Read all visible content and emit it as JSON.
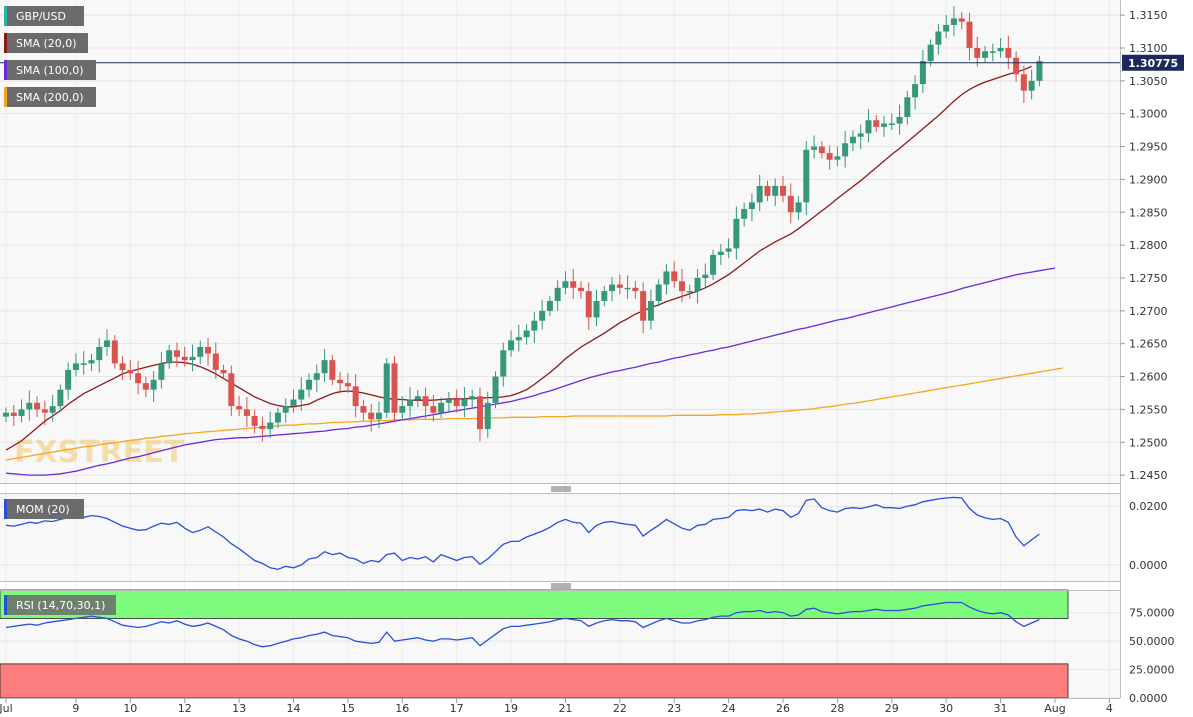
{
  "chart_data": {
    "type": "candlestick",
    "symbol": "GBP/USD",
    "indicators": {
      "sma20": {
        "label": "SMA (20,0)",
        "color": "#8b1a1a"
      },
      "sma100": {
        "label": "SMA (100,0)",
        "color": "#6a2ad8"
      },
      "sma200": {
        "label": "SMA (200,0)",
        "color": "#f5a623"
      },
      "mom": {
        "label": "MOM (20)",
        "color": "#2a4fd8"
      },
      "rsi": {
        "label": "RSI (14,70,30,1)",
        "color": "#2a4fd8"
      }
    },
    "last_price": "1.30775",
    "price_axis": {
      "ylim": [
        1.2438,
        1.3173
      ],
      "ticks": [
        "1.3150",
        "1.3100",
        "1.3050",
        "1.3000",
        "1.2950",
        "1.2900",
        "1.2850",
        "1.2800",
        "1.2750",
        "1.2700",
        "1.2650",
        "1.2600",
        "1.2550",
        "1.2500",
        "1.2450"
      ]
    },
    "mom_axis": {
      "ylim": [
        -0.0055,
        0.0245
      ],
      "ticks": [
        "0.0200",
        "0.0000"
      ]
    },
    "rsi_axis": {
      "ylim": [
        0,
        95
      ],
      "ticks": [
        "75.0000",
        "50.0000",
        "25.0000",
        "0.0000"
      ],
      "overbought": 70,
      "oversold": 30
    },
    "x_labels": [
      {
        "label": "Jul",
        "i": 0
      },
      {
        "label": "9",
        "i": 9
      },
      {
        "label": "10",
        "i": 16
      },
      {
        "label": "12",
        "i": 23
      },
      {
        "label": "13",
        "i": 30
      },
      {
        "label": "14",
        "i": 37
      },
      {
        "label": "15",
        "i": 44
      },
      {
        "label": "16",
        "i": 51
      },
      {
        "label": "17",
        "i": 58
      },
      {
        "label": "19",
        "i": 65
      },
      {
        "label": "21",
        "i": 72
      },
      {
        "label": "22",
        "i": 79
      },
      {
        "label": "23",
        "i": 86
      },
      {
        "label": "24",
        "i": 93
      },
      {
        "label": "26",
        "i": 100
      },
      {
        "label": "28",
        "i": 107
      },
      {
        "label": "29",
        "i": 114
      },
      {
        "label": "30",
        "i": 121
      },
      {
        "label": "31",
        "i": 128
      },
      {
        "label": "Aug",
        "i": 135
      },
      {
        "label": "4",
        "i": 142
      }
    ],
    "closes": [
      1.2545,
      1.254,
      1.255,
      1.256,
      1.255,
      1.2545,
      1.2555,
      1.258,
      1.261,
      1.262,
      1.262,
      1.2625,
      1.2645,
      1.2655,
      1.262,
      1.261,
      1.2605,
      1.259,
      1.258,
      1.2595,
      1.262,
      1.264,
      1.263,
      1.2625,
      1.263,
      1.2645,
      1.2635,
      1.261,
      1.2605,
      1.2555,
      1.255,
      1.254,
      1.2525,
      1.252,
      1.253,
      1.2545,
      1.2555,
      1.2565,
      1.258,
      1.2595,
      1.2605,
      1.2625,
      1.2595,
      1.259,
      1.2585,
      1.2555,
      1.2545,
      1.2535,
      1.2545,
      1.262,
      1.2545,
      1.2555,
      1.2565,
      1.257,
      1.2555,
      1.2545,
      1.256,
      1.2565,
      1.2555,
      1.2565,
      1.257,
      1.252,
      1.256,
      1.26,
      1.264,
      1.2655,
      1.266,
      1.267,
      1.2685,
      1.27,
      1.2715,
      1.2735,
      1.2745,
      1.2735,
      1.273,
      1.269,
      1.2715,
      1.273,
      1.274,
      1.2735,
      1.2735,
      1.273,
      1.2685,
      1.2715,
      1.274,
      1.276,
      1.2745,
      1.273,
      1.273,
      1.275,
      1.2755,
      1.2785,
      1.279,
      1.2795,
      1.284,
      1.2855,
      1.2865,
      1.289,
      1.2875,
      1.289,
      1.2875,
      1.285,
      1.2865,
      1.2945,
      1.295,
      1.294,
      1.293,
      1.2935,
      1.2955,
      1.2965,
      1.297,
      1.299,
      1.298,
      1.2985,
      1.2985,
      1.2995,
      1.3025,
      1.3045,
      1.308,
      1.3105,
      1.3125,
      1.3135,
      1.3145,
      1.314,
      1.31,
      1.3085,
      1.3095,
      1.3095,
      1.31,
      1.3085,
      1.306,
      1.3035,
      1.305,
      1.308
    ],
    "sma20": [
      1.2488,
      1.2495,
      1.2502,
      1.2512,
      1.2522,
      1.2532,
      1.254,
      1.2548,
      1.2558,
      1.2566,
      1.2574,
      1.258,
      1.2586,
      1.2592,
      1.2598,
      1.2604,
      1.2608,
      1.2611,
      1.2614,
      1.2617,
      1.262,
      1.2622,
      1.2622,
      1.2621,
      1.2619,
      1.2615,
      1.261,
      1.2604,
      1.2597,
      1.259,
      1.2583,
      1.2576,
      1.2569,
      1.2564,
      1.2559,
      1.2556,
      1.2554,
      1.2554,
      1.2556,
      1.2558,
      1.2564,
      1.2569,
      1.2574,
      1.2577,
      1.2578,
      1.2577,
      1.2575,
      1.2572,
      1.2569,
      1.2567,
      1.2565,
      1.2565,
      1.2564,
      1.2564,
      1.2564,
      1.2564,
      1.2565,
      1.2566,
      1.2566,
      1.2566,
      1.2567,
      1.2567,
      1.2568,
      1.2568,
      1.2569,
      1.2571,
      1.2575,
      1.258,
      1.2588,
      1.2597,
      1.2606,
      1.2616,
      1.2627,
      1.2636,
      1.2645,
      1.2652,
      1.2659,
      1.2666,
      1.2674,
      1.2682,
      1.2688,
      1.2695,
      1.27,
      1.2705,
      1.2709,
      1.2714,
      1.2718,
      1.2722,
      1.2726,
      1.273,
      1.2735,
      1.2741,
      1.2748,
      1.2755,
      1.2764,
      1.2773,
      1.2782,
      1.2791,
      1.2798,
      1.2805,
      1.2811,
      1.2817,
      1.2825,
      1.2834,
      1.2843,
      1.2852,
      1.2861,
      1.2871,
      1.288,
      1.2889,
      1.2898,
      1.2908,
      1.2918,
      1.2928,
      1.2938,
      1.2947,
      1.2957,
      1.2967,
      1.2977,
      1.2987,
      1.2997,
      1.3008,
      1.3019,
      1.3029,
      1.3037,
      1.3043,
      1.3048,
      1.3052,
      1.3056,
      1.306,
      1.3063,
      1.3067,
      1.3072
    ],
    "sma100": [
      1.2453,
      1.2452,
      1.2451,
      1.245,
      1.245,
      1.245,
      1.2451,
      1.2452,
      1.2454,
      1.2456,
      1.2459,
      1.2462,
      1.2465,
      1.2467,
      1.247,
      1.2473,
      1.2476,
      1.2478,
      1.2481,
      1.2484,
      1.2487,
      1.249,
      1.2493,
      1.2496,
      1.2498,
      1.25,
      1.2502,
      1.2504,
      1.2505,
      1.2506,
      1.2507,
      1.2507,
      1.2508,
      1.2509,
      1.251,
      1.2511,
      1.2512,
      1.2513,
      1.2514,
      1.2515,
      1.2516,
      1.2517,
      1.2519,
      1.252,
      1.2521,
      1.2523,
      1.2524,
      1.2526,
      1.2528,
      1.253,
      1.2532,
      1.2534,
      1.2536,
      1.2538,
      1.254,
      1.2542,
      1.2544,
      1.2546,
      1.2548,
      1.255,
      1.2552,
      1.2554,
      1.2556,
      1.2558,
      1.256,
      1.2562,
      1.2565,
      1.2568,
      1.2571,
      1.2575,
      1.2578,
      1.2582,
      1.2586,
      1.259,
      1.2594,
      1.2598,
      1.2601,
      1.2604,
      1.2607,
      1.2609,
      1.2612,
      1.2614,
      1.2617,
      1.262,
      1.2622,
      1.2625,
      1.2628,
      1.263,
      1.2633,
      1.2635,
      1.2638,
      1.264,
      1.2643,
      1.2645,
      1.2648,
      1.2651,
      1.2654,
      1.2657,
      1.266,
      1.2663,
      1.2666,
      1.2669,
      1.2672,
      1.2674,
      1.2677,
      1.268,
      1.2683,
      1.2686,
      1.2688,
      1.2691,
      1.2694,
      1.2697,
      1.27,
      1.2703,
      1.2706,
      1.2709,
      1.2712,
      1.2715,
      1.2718,
      1.2721,
      1.2724,
      1.2727,
      1.273,
      1.2734,
      1.2737,
      1.274,
      1.2743,
      1.2746,
      1.2749,
      1.2752,
      1.2755,
      1.2757,
      1.2759,
      1.2761,
      1.2763,
      1.2765
    ],
    "sma200": [
      1.2473,
      1.2475,
      1.2477,
      1.2479,
      1.2481,
      1.2483,
      1.2485,
      1.2487,
      1.2489,
      1.2491,
      1.2493,
      1.2494,
      1.2496,
      1.2498,
      1.2499,
      1.2501,
      1.2503,
      1.2504,
      1.2506,
      1.2507,
      1.2509,
      1.251,
      1.2511,
      1.2513,
      1.2514,
      1.2515,
      1.2516,
      1.2517,
      1.2518,
      1.2519,
      1.252,
      1.2521,
      1.2522,
      1.2523,
      1.2524,
      1.2525,
      1.2526,
      1.2526,
      1.2527,
      1.2528,
      1.2528,
      1.2529,
      1.253,
      1.253,
      1.2531,
      1.2531,
      1.2532,
      1.2532,
      1.2533,
      1.2533,
      1.2534,
      1.2534,
      1.2534,
      1.2535,
      1.2535,
      1.2535,
      1.2535,
      1.2536,
      1.2536,
      1.2536,
      1.2536,
      1.2537,
      1.2537,
      1.2537,
      1.2537,
      1.2538,
      1.2538,
      1.2538,
      1.2538,
      1.2539,
      1.2539,
      1.2539,
      1.2539,
      1.254,
      1.254,
      1.254,
      1.254,
      1.254,
      1.254,
      1.254,
      1.254,
      1.254,
      1.254,
      1.254,
      1.254,
      1.254,
      1.2541,
      1.2541,
      1.2541,
      1.2541,
      1.2541,
      1.2541,
      1.2542,
      1.2542,
      1.2542,
      1.2543,
      1.2543,
      1.2544,
      1.2545,
      1.2546,
      1.2547,
      1.2548,
      1.2549,
      1.255,
      1.2551,
      1.2553,
      1.2554,
      1.2556,
      1.2558,
      1.2559,
      1.2561,
      1.2563,
      1.2565,
      1.2567,
      1.2569,
      1.2571,
      1.2573,
      1.2575,
      1.2577,
      1.2579,
      1.2581,
      1.2583,
      1.2585,
      1.2587,
      1.2589,
      1.2591,
      1.2593,
      1.2595,
      1.2597,
      1.2599,
      1.2601,
      1.2603,
      1.2605,
      1.2607,
      1.2609,
      1.2611,
      1.2613
    ],
    "mom": [
      0.0135,
      0.0132,
      0.0138,
      0.0145,
      0.0142,
      0.015,
      0.0148,
      0.0155,
      0.016,
      0.0158,
      0.0162,
      0.0168,
      0.0165,
      0.0158,
      0.0145,
      0.0132,
      0.0125,
      0.0118,
      0.012,
      0.0132,
      0.0142,
      0.0138,
      0.0145,
      0.0125,
      0.011,
      0.0118,
      0.013,
      0.0112,
      0.0095,
      0.0072,
      0.0055,
      0.0035,
      0.0015,
      0.0005,
      -0.001,
      -0.0015,
      -0.0005,
      -0.001,
      0.0,
      0.002,
      0.0025,
      0.0045,
      0.0035,
      0.004,
      0.0025,
      0.002,
      0.0005,
      0.0015,
      0.001,
      0.0035,
      0.004,
      0.0015,
      0.0025,
      0.002,
      0.0028,
      0.001,
      0.0035,
      0.0025,
      0.0015,
      0.0025,
      0.0028,
      0.0002,
      0.002,
      0.0045,
      0.007,
      0.008,
      0.008,
      0.0095,
      0.0105,
      0.0115,
      0.0128,
      0.0145,
      0.0155,
      0.0145,
      0.0142,
      0.011,
      0.0135,
      0.0145,
      0.0148,
      0.0142,
      0.0138,
      0.0135,
      0.0098,
      0.0118,
      0.0135,
      0.0155,
      0.014,
      0.0125,
      0.0118,
      0.0135,
      0.0138,
      0.0155,
      0.0158,
      0.0162,
      0.0185,
      0.0188,
      0.0185,
      0.019,
      0.018,
      0.019,
      0.0185,
      0.0162,
      0.0175,
      0.022,
      0.0225,
      0.0195,
      0.0185,
      0.018,
      0.0192,
      0.0195,
      0.0192,
      0.0198,
      0.0205,
      0.0195,
      0.0195,
      0.0192,
      0.02,
      0.0205,
      0.0215,
      0.022,
      0.0225,
      0.0228,
      0.023,
      0.0228,
      0.0192,
      0.017,
      0.016,
      0.0155,
      0.0158,
      0.0145,
      0.0095,
      0.0065,
      0.0085,
      0.0105
    ],
    "rsi": [
      62,
      63,
      64,
      65,
      64,
      66,
      67,
      68,
      69,
      70,
      71,
      72,
      71,
      70,
      67,
      64,
      63,
      62,
      63,
      65,
      67,
      66,
      68,
      65,
      63,
      64,
      66,
      63,
      60,
      55,
      52,
      50,
      47,
      45,
      46,
      48,
      50,
      52,
      53,
      55,
      56,
      58,
      55,
      54,
      53,
      50,
      49,
      48,
      49,
      58,
      50,
      51,
      52,
      53,
      51,
      50,
      52,
      52,
      51,
      52,
      53,
      46,
      51,
      56,
      61,
      63,
      63,
      64,
      65,
      66,
      67,
      69,
      70,
      69,
      68,
      63,
      66,
      68,
      69,
      68,
      68,
      67,
      62,
      65,
      68,
      70,
      68,
      66,
      66,
      68,
      69,
      71,
      72,
      72,
      75,
      76,
      76,
      77,
      75,
      76,
      75,
      72,
      73,
      78,
      79,
      76,
      75,
      74,
      75,
      76,
      76,
      77,
      78,
      77,
      77,
      77,
      78,
      79,
      81,
      82,
      83,
      84,
      84,
      84,
      80,
      77,
      75,
      74,
      75,
      73,
      67,
      63,
      66,
      69
    ]
  },
  "ui": {
    "brand_watermark": "FXSTREET"
  }
}
